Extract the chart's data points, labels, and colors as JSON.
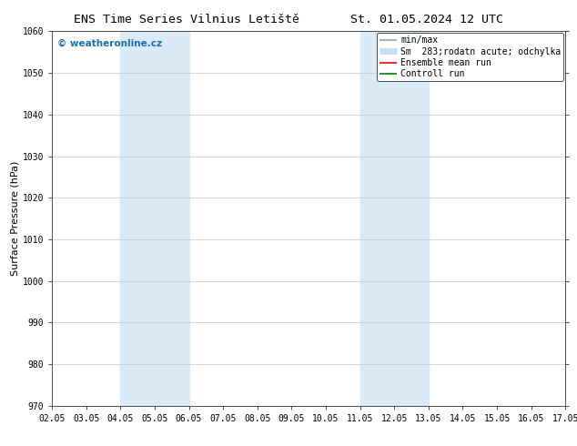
{
  "title_left": "ENS Time Series Vilnius Letiště",
  "title_right": "St. 01.05.2024 12 UTC",
  "ylabel": "Surface Pressure (hPa)",
  "ylim": [
    970,
    1060
  ],
  "yticks": [
    970,
    980,
    990,
    1000,
    1010,
    1020,
    1030,
    1040,
    1050,
    1060
  ],
  "x_labels": [
    "02.05",
    "03.05",
    "04.05",
    "05.05",
    "06.05",
    "07.05",
    "08.05",
    "09.05",
    "10.05",
    "11.05",
    "12.05",
    "13.05",
    "14.05",
    "15.05",
    "16.05",
    "17.05"
  ],
  "x_positions": [
    0,
    1,
    2,
    3,
    4,
    5,
    6,
    7,
    8,
    9,
    10,
    11,
    12,
    13,
    14,
    15
  ],
  "shaded_regions": [
    {
      "xmin": 2,
      "xmax": 4,
      "color": "#daeaf7"
    },
    {
      "xmin": 9,
      "xmax": 11,
      "color": "#daeaf7"
    }
  ],
  "watermark": "© weatheronline.cz",
  "watermark_color": "#1a6eb5",
  "legend_entries": [
    {
      "label": "min/max",
      "color": "#b0b0b0",
      "lw": 1.5
    },
    {
      "label": "Sm  283;rodatn acute; odchylka",
      "color": "#c8dff0",
      "lw": 5
    },
    {
      "label": "Ensemble mean run",
      "color": "red",
      "lw": 1.2
    },
    {
      "label": "Controll run",
      "color": "green",
      "lw": 1.2
    }
  ],
  "bg_color": "#ffffff",
  "grid_color": "#c8c8c8",
  "spine_color": "#303030",
  "title_fontsize": 9.5,
  "label_fontsize": 8,
  "tick_fontsize": 7,
  "legend_fontsize": 7
}
